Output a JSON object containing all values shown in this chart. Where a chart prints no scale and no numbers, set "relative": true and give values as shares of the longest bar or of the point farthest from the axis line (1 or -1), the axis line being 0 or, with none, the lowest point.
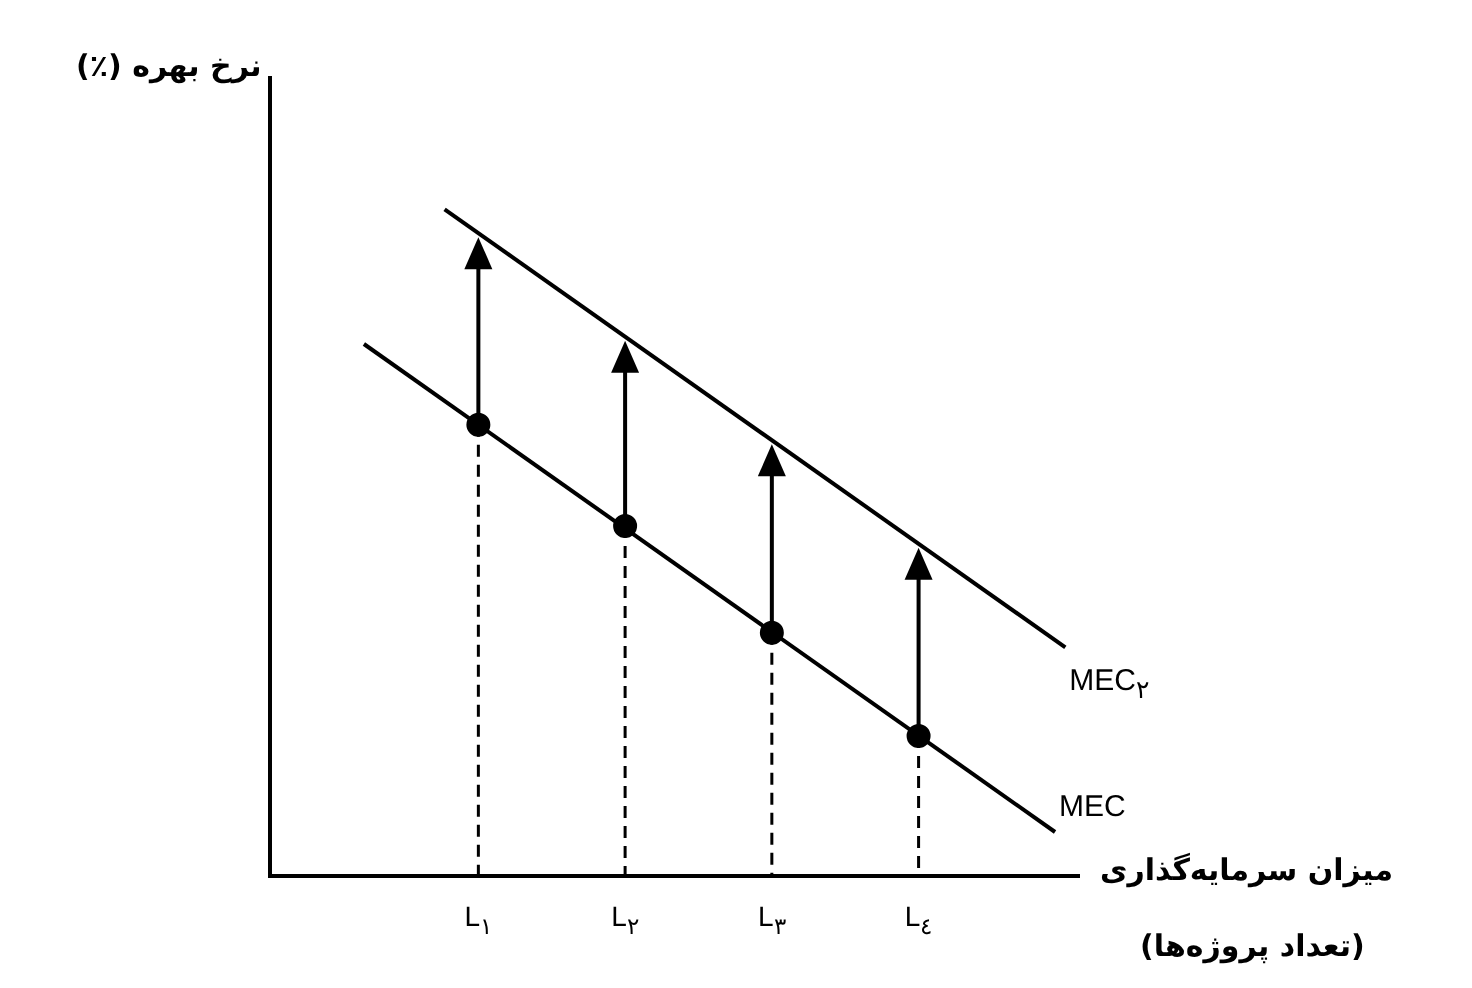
{
  "chart_data": {
    "type": "line",
    "relative": true,
    "ylabel": "نرخ بهره (٪)",
    "xlabel": "میزان سرمایه‌گذاری\n(تعداد پروژه‌ها)",
    "xlim": [
      -0.42,
      5.1
    ],
    "xticks": [
      {
        "value": 1,
        "label": "L$_{١}$"
      },
      {
        "value": 2,
        "label": "L$_{٢}$"
      },
      {
        "value": 3,
        "label": "L$_{٣}$"
      },
      {
        "value": 4,
        "label": "L$_{٤}$"
      }
    ],
    "tick_labels": "x",
    "legend": false,
    "series": [
      {
        "name": "MEC$_{٢}$",
        "color": "#000000",
        "x": [
          0.77,
          5.0
        ],
        "values": [
          1,
          0.343
        ],
        "marker": "none"
      },
      {
        "name": "MEC",
        "color": "#000000",
        "x": [
          0.22,
          4.93
        ],
        "values": [
          0.798,
          0.066
        ],
        "marker": "none"
      },
      {
        "type": "lollipop",
        "color": "#000000",
        "x": [
          1,
          2,
          3,
          4
        ],
        "values": [
          0.677,
          0.525,
          0.365,
          0.21
        ],
        "marker": "circle",
        "line_style": "dashed"
      }
    ]
  }
}
